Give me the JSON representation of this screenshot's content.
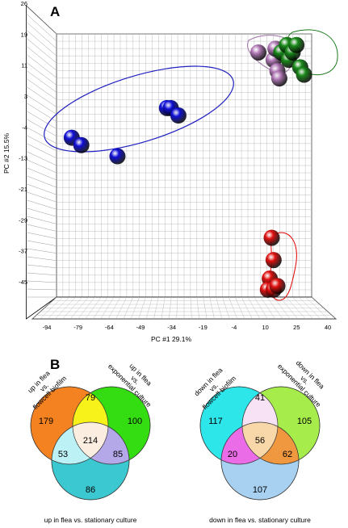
{
  "figure": {
    "panel_a_label": "A",
    "panel_b_label": "B",
    "colors": {
      "cluster_blue": "#1010d8",
      "cluster_red": "#e01010",
      "cluster_green": "#1a8a1a",
      "cluster_purple": "#b37ab8",
      "ellipse_blue": "#2020c0",
      "grid": "#b8b8b8"
    }
  },
  "chart_data": [
    {
      "type": "scatter",
      "title": "",
      "xlabel": "PC #1  29.1%",
      "ylabel": "PC #2  15.5%",
      "x_ticks": [
        "-94",
        "-79",
        "-64",
        "-49",
        "-34",
        "-19",
        "-4",
        "10",
        "25",
        "40"
      ],
      "y_ticks": [
        "26",
        "19",
        "11",
        "3",
        "-4",
        "-13",
        "-21",
        "-29",
        "-37",
        "-45"
      ],
      "xlim": [
        -94,
        40
      ],
      "ylim": [
        -45,
        26
      ],
      "grid": true,
      "series": [
        {
          "color": "#1010d8",
          "points": [
            [
              -86,
              -2
            ],
            [
              -81,
              -4
            ],
            [
              -62,
              -7
            ],
            [
              -36,
              6
            ],
            [
              -34,
              6
            ],
            [
              -30,
              4
            ]
          ]
        },
        {
          "color": "#b37ab8",
          "points": [
            [
              12,
              21
            ],
            [
              20,
              19
            ],
            [
              21,
              22
            ],
            [
              22,
              16
            ],
            [
              23,
              14
            ]
          ]
        },
        {
          "color": "#1a8a1a",
          "points": [
            [
              24,
              21
            ],
            [
              27,
              23
            ],
            [
              28,
              19
            ],
            [
              30,
              21
            ],
            [
              32,
              23
            ],
            [
              34,
              17
            ],
            [
              36,
              15
            ]
          ]
        },
        {
          "color": "#e01010",
          "points": [
            [
              19,
              -29
            ],
            [
              20,
              -35
            ],
            [
              18,
              -40
            ],
            [
              17,
              -43
            ],
            [
              20,
              -43
            ],
            [
              22,
              -42
            ]
          ]
        }
      ]
    },
    {
      "type": "venn",
      "sets": [
        "up in flea vs. flowcell biofilm",
        "up in flea vs. exponential culture",
        "up in flea vs. stationary culture"
      ],
      "set_labels": [
        "up in flea\nvs.\nflowcell biofilm",
        "up in flea\nvs.\nexponential culture",
        "up in flea vs. stationary culture"
      ],
      "regions": {
        "A_only": 179,
        "B_only": 100,
        "C_only": 86,
        "AB": 79,
        "AC": 53,
        "BC": 85,
        "ABC": 214
      },
      "colors": {
        "A": "#f58220",
        "B": "#33dd11",
        "C": "#3cc8d0",
        "AB": "#f6f21a",
        "AC": "#bcf2f6",
        "BC": "#b4a8e8",
        "ABC": "#fbeee0"
      }
    },
    {
      "type": "venn",
      "sets": [
        "down in flea vs. flowcell biofilm",
        "down in flea vs. exponential culture",
        "down in flea vs. stationary culture"
      ],
      "set_labels": [
        "down in flea\nvs.\nflowcell biofilm",
        "down in flea\nvs.\nexponential culture",
        "down in flea vs. stationary culture"
      ],
      "regions": {
        "A_only": 117,
        "B_only": 105,
        "C_only": 107,
        "AB": 41,
        "AC": 20,
        "BC": 62,
        "ABC": 56
      },
      "colors": {
        "A": "#2de6ea",
        "B": "#a6ec4a",
        "C": "#a8d0f0",
        "AB": "#f6e2f4",
        "AC": "#ea6ce6",
        "BC": "#f09840",
        "ABC": "#f8d8a8"
      }
    }
  ]
}
